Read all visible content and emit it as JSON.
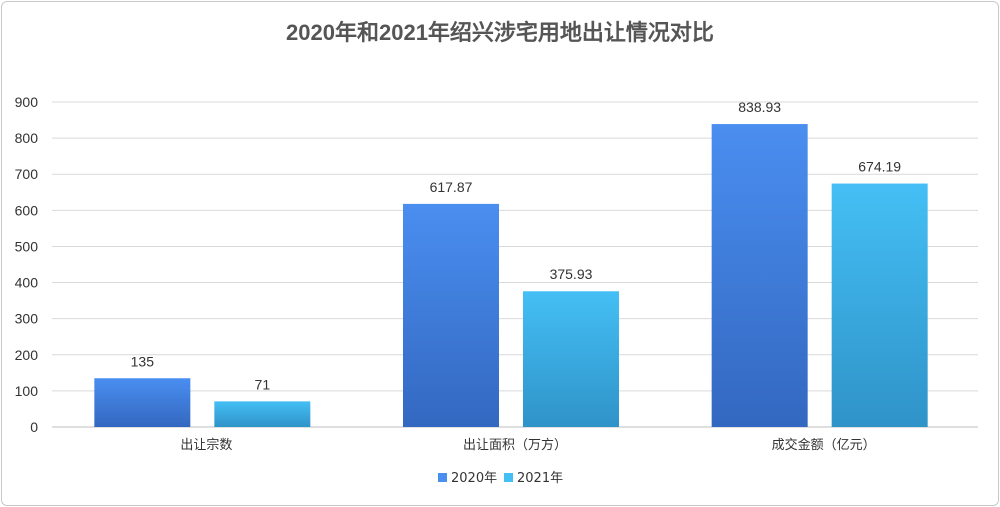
{
  "chart_data": {
    "type": "bar",
    "title": "2020年和2021年绍兴涉宅用地出让情况对比",
    "categories": [
      "出让宗数",
      "出让面积（万方）",
      "成交金额（亿元）"
    ],
    "series": [
      {
        "name": "2020年",
        "values": [
          135,
          617.87,
          838.93
        ],
        "labels": [
          "135",
          "617.87",
          "838.93"
        ],
        "color_top": "#4a8ef0",
        "color_bottom": "#3368c0"
      },
      {
        "name": "2021年",
        "values": [
          71,
          375.93,
          674.19
        ],
        "labels": [
          "71",
          "375.93",
          "674.19"
        ],
        "color_top": "#44bff5",
        "color_bottom": "#2f93c8"
      }
    ],
    "yticks": [
      0,
      100,
      200,
      300,
      400,
      500,
      600,
      700,
      800,
      900
    ],
    "ylim": [
      0,
      900
    ],
    "grid": true,
    "legend_position": "bottom"
  }
}
